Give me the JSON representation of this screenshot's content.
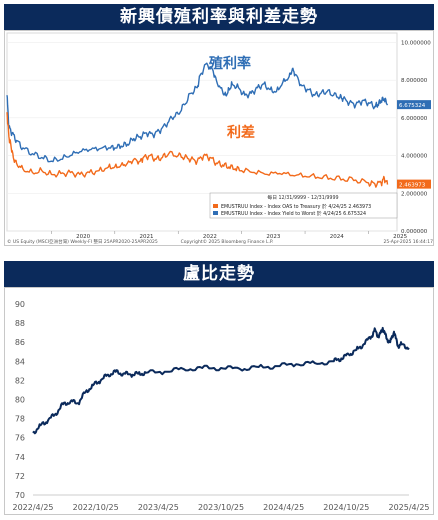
{
  "panels": {
    "top_title": "新興債殖利率與利差走勢",
    "bottom_title": "盧比走勢"
  },
  "chart_data": [
    {
      "type": "line",
      "title": "新興債殖利率與利差走勢",
      "annotations": {
        "yield_label": "殖利率",
        "spread_label": "利差"
      },
      "x_ticks": [
        "2020",
        "2021",
        "2022",
        "2023",
        "2024",
        "2025"
      ],
      "y_ticks": [
        "0.000000",
        "2.000000",
        "4.000000",
        "6.000000",
        "8.000000",
        "10.000000"
      ],
      "ylim": [
        0,
        10
      ],
      "legend": {
        "header": "每日 12/31/9999 - 12/31/9999",
        "entries": [
          {
            "text": "EMUSTRUU Index - Index OAS to Treasury 於 4/24/25 2.463973",
            "color": "#f26a1b"
          },
          {
            "text": "EMUSTRUU Index - Index Yield to Worst 於 4/24/25 6.675324",
            "color": "#2f6eb5"
          }
        ]
      },
      "end_labels": {
        "yield": "6.675324",
        "spread": "2.463973"
      },
      "footer": {
        "left": "© US Equity (MSCI亞洲台灣) Weekly-FI 整日 25APR2020-25APR2025",
        "center": "Copyright© 2025 Bloomberg Finance L.P.",
        "right": "25-Apr-2025 16:44:17"
      },
      "series": [
        {
          "name": "EMUSTRUU Index - Index Yield to Worst",
          "color": "#2f6eb5",
          "x": [
            2019.3,
            2019.33,
            2019.38,
            2019.45,
            2019.55,
            2019.7,
            2019.85,
            2020.0,
            2020.15,
            2020.3,
            2020.45,
            2020.6,
            2020.75,
            2020.9,
            2021.0,
            2021.1,
            2021.2,
            2021.3,
            2021.4,
            2021.5,
            2021.6,
            2021.7,
            2021.8,
            2021.9,
            2022.0,
            2022.1,
            2022.2,
            2022.3,
            2022.35,
            2022.45,
            2022.55,
            2022.6,
            2022.7,
            2022.75,
            2022.8,
            2022.85,
            2022.95,
            2023.05,
            2023.15,
            2023.25,
            2023.35,
            2023.45,
            2023.55,
            2023.65,
            2023.75,
            2023.8,
            2023.85,
            2023.95,
            2024.05,
            2024.15,
            2024.25,
            2024.35,
            2024.45,
            2024.55,
            2024.6,
            2024.7,
            2024.8,
            2024.9,
            2025.0,
            2025.1,
            2025.15,
            2025.2,
            2025.25,
            2025.3
          ],
          "y": [
            7.2,
            5.5,
            5.2,
            4.8,
            4.4,
            4.1,
            3.9,
            3.7,
            3.8,
            4.0,
            4.2,
            4.3,
            4.35,
            4.4,
            4.4,
            4.5,
            4.6,
            4.9,
            5.0,
            5.2,
            5.1,
            5.3,
            5.6,
            6.0,
            6.2,
            6.7,
            7.3,
            7.6,
            8.3,
            8.9,
            8.5,
            8.0,
            7.4,
            7.2,
            7.5,
            7.8,
            7.6,
            7.2,
            7.3,
            7.6,
            7.8,
            7.5,
            7.4,
            7.9,
            8.2,
            8.6,
            8.3,
            7.7,
            7.5,
            7.2,
            7.3,
            7.4,
            7.2,
            7.1,
            7.0,
            6.8,
            6.7,
            6.9,
            6.8,
            6.6,
            6.7,
            6.9,
            7.0,
            6.675
          ]
        },
        {
          "name": "EMUSTRUU Index - Index OAS to Treasury",
          "color": "#f26a1b",
          "x": [
            2019.3,
            2019.33,
            2019.36,
            2019.4,
            2019.45,
            2019.55,
            2019.7,
            2019.85,
            2020.0,
            2020.15,
            2020.3,
            2020.45,
            2020.6,
            2020.75,
            2020.9,
            2021.0,
            2021.1,
            2021.2,
            2021.3,
            2021.4,
            2021.45,
            2021.55,
            2021.65,
            2021.75,
            2021.85,
            2022.0,
            2022.1,
            2022.2,
            2022.3,
            2022.4,
            2022.5,
            2022.6,
            2022.7,
            2022.8,
            2022.9,
            2023.0,
            2023.2,
            2023.4,
            2023.6,
            2023.8,
            2024.0,
            2024.2,
            2024.4,
            2024.6,
            2024.8,
            2025.0,
            2025.1,
            2025.2,
            2025.25,
            2025.3
          ],
          "y": [
            6.3,
            5.0,
            4.6,
            3.9,
            3.6,
            3.3,
            3.1,
            3.2,
            3.0,
            3.05,
            3.1,
            3.0,
            3.1,
            3.2,
            3.4,
            3.4,
            3.5,
            3.6,
            3.8,
            3.7,
            3.9,
            4.0,
            3.8,
            3.9,
            4.1,
            4.0,
            3.9,
            3.8,
            3.7,
            4.0,
            3.9,
            3.6,
            3.5,
            3.4,
            3.3,
            3.2,
            3.1,
            3.0,
            3.05,
            2.95,
            2.9,
            2.85,
            2.8,
            2.75,
            2.7,
            2.55,
            2.5,
            2.55,
            2.8,
            2.46
          ]
        }
      ]
    },
    {
      "type": "line",
      "title": "盧比走勢",
      "x_ticks": [
        "2022/4/25",
        "2022/10/25",
        "2023/4/25",
        "2023/10/25",
        "2024/4/25",
        "2024/10/25",
        "2025/4/25"
      ],
      "y_ticks": [
        "70",
        "72",
        "74",
        "76",
        "78",
        "80",
        "82",
        "84",
        "86",
        "88",
        "90"
      ],
      "ylim": [
        70,
        90
      ],
      "series": [
        {
          "name": "",
          "color": "#0b2a5b",
          "x": [
            0,
            0.02,
            0.04,
            0.06,
            0.08,
            0.1,
            0.12,
            0.14,
            0.16,
            0.18,
            0.2,
            0.22,
            0.24,
            0.26,
            0.28,
            0.3,
            0.35,
            0.4,
            0.45,
            0.5,
            0.55,
            0.6,
            0.65,
            0.7,
            0.75,
            0.8,
            0.82,
            0.84,
            0.86,
            0.88,
            0.9,
            0.91,
            0.92,
            0.93,
            0.94,
            0.95,
            0.96,
            0.97,
            0.98,
            1.0
          ],
          "y": [
            76.5,
            77.3,
            77.8,
            78.5,
            79.5,
            79.8,
            79.6,
            80.8,
            81.5,
            82.0,
            82.6,
            82.9,
            82.7,
            82.6,
            82.7,
            82.8,
            82.9,
            83.2,
            83.3,
            83.3,
            83.2,
            83.4,
            83.5,
            83.7,
            83.8,
            84.0,
            84.3,
            84.7,
            85.2,
            85.8,
            86.6,
            87.3,
            86.5,
            87.5,
            86.4,
            86.0,
            87.1,
            85.6,
            85.8,
            85.4
          ]
        }
      ]
    }
  ]
}
